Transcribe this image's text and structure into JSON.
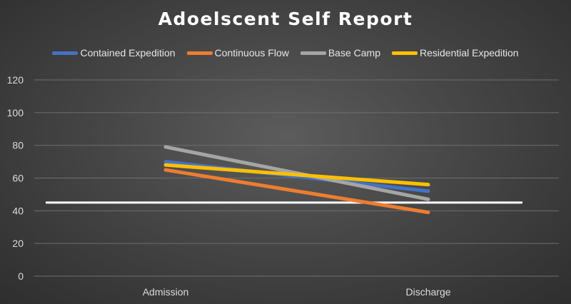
{
  "chart_data": {
    "type": "line",
    "title": "Adoelscent Self Report",
    "xlabel": "",
    "ylabel": "",
    "categories": [
      "Admission",
      "Discharge"
    ],
    "ylim": [
      0,
      120
    ],
    "yticks": [
      0,
      20,
      40,
      60,
      80,
      100,
      120
    ],
    "grid": true,
    "legend_position": "top",
    "series": [
      {
        "name": "Contained Expedition",
        "values": [
          70,
          52
        ],
        "color": "#4472c4"
      },
      {
        "name": "Continuous Flow",
        "values": [
          65,
          39
        ],
        "color": "#ed7d31"
      },
      {
        "name": "Base Camp",
        "values": [
          79,
          47
        ],
        "color": "#a5a5a5"
      },
      {
        "name": "Residential Expedition",
        "values": [
          68,
          56
        ],
        "color": "#ffc000"
      }
    ],
    "reference_line": {
      "value": 45,
      "color": "#ffffff"
    }
  }
}
